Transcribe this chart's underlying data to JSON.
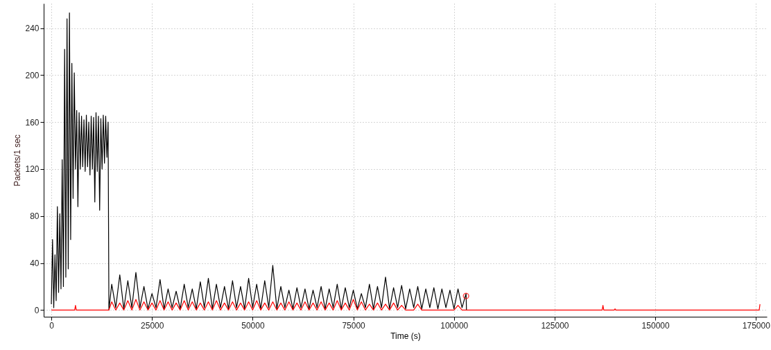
{
  "chart_data": {
    "type": "line",
    "xlabel": "Time (s)",
    "ylabel": "Packets/1 sec",
    "xlim": [
      -1900,
      177700
    ],
    "ylim": [
      -5.7,
      261
    ],
    "xticks": [
      0,
      25000,
      50000,
      75000,
      100000,
      125000,
      150000,
      175000
    ],
    "yticks": [
      0,
      40,
      80,
      120,
      160,
      200,
      240
    ],
    "grid": true,
    "series": [
      {
        "color": "#000000",
        "x": [
          0,
          300,
          600,
          900,
          1200,
          1500,
          1800,
          2100,
          2400,
          2700,
          3000,
          3300,
          3600,
          3900,
          4200,
          4500,
          4800,
          5100,
          5400,
          5700,
          6000,
          6300,
          6600,
          6900,
          7200,
          7500,
          7800,
          8100,
          8400,
          8700,
          9000,
          9300,
          9600,
          9900,
          10200,
          10500,
          10800,
          11100,
          11400,
          11700,
          12000,
          12300,
          12600,
          12900,
          13200,
          13500,
          13800,
          14100,
          14300,
          15000,
          16000,
          17000,
          18000,
          19000,
          20000,
          21000,
          22000,
          23000,
          24000,
          25000,
          26000,
          27000,
          28000,
          29000,
          30000,
          31000,
          32000,
          33000,
          34000,
          35000,
          36000,
          37000,
          38000,
          39000,
          40000,
          41000,
          42000,
          43000,
          44000,
          45000,
          46000,
          47000,
          48000,
          49000,
          50000,
          51000,
          52000,
          53000,
          54000,
          55000,
          56000,
          57000,
          58000,
          59000,
          60000,
          61000,
          62000,
          63000,
          64000,
          65000,
          66000,
          67000,
          68000,
          69000,
          70000,
          71000,
          72000,
          73000,
          74000,
          75000,
          76000,
          77000,
          78000,
          79000,
          80000,
          81000,
          82000,
          83000,
          84000,
          85000,
          86000,
          87000,
          88000,
          89000,
          90000,
          91000,
          92000,
          93000,
          94000,
          95000,
          96000,
          97000,
          98000,
          99000,
          100000,
          101000,
          102000,
          103000,
          103100
        ],
        "values": [
          5,
          60,
          2,
          47,
          8,
          88,
          15,
          82,
          18,
          128,
          20,
          222,
          28,
          248,
          35,
          253,
          60,
          210,
          95,
          202,
          120,
          170,
          88,
          168,
          120,
          165,
          122,
          162,
          118,
          166,
          122,
          160,
          115,
          165,
          120,
          164,
          92,
          168,
          118,
          165,
          85,
          163,
          120,
          166,
          125,
          165,
          130,
          160,
          0,
          22,
          2,
          30,
          1,
          25,
          2,
          32,
          2,
          20,
          1,
          14,
          2,
          26,
          1,
          18,
          2,
          16,
          1,
          22,
          2,
          18,
          1,
          24,
          2,
          27,
          1,
          22,
          2,
          20,
          1,
          25,
          2,
          20,
          1,
          27,
          2,
          22,
          1,
          25,
          2,
          38,
          1,
          20,
          2,
          17,
          1,
          19,
          2,
          18,
          1,
          17,
          2,
          20,
          1,
          18,
          2,
          22,
          1,
          19,
          2,
          17,
          1,
          14,
          2,
          22,
          1,
          20,
          2,
          28,
          1,
          19,
          2,
          21,
          1,
          18,
          2,
          20,
          1,
          18,
          2,
          19,
          1,
          18,
          2,
          17,
          1,
          18,
          2,
          14,
          0
        ]
      },
      {
        "color": "#ff0000",
        "x": [
          0,
          5800,
          6000,
          6200,
          14300,
          15000,
          16000,
          17000,
          18000,
          19000,
          20000,
          21000,
          22000,
          23000,
          24000,
          25000,
          26000,
          27000,
          28000,
          29000,
          30000,
          31000,
          32000,
          33000,
          34000,
          35000,
          36000,
          37000,
          38000,
          39000,
          40000,
          41000,
          42000,
          43000,
          44000,
          45000,
          46000,
          47000,
          48000,
          49000,
          50000,
          51000,
          52000,
          53000,
          54000,
          55000,
          56000,
          57000,
          58000,
          59000,
          60000,
          61000,
          62000,
          63000,
          64000,
          65000,
          66000,
          67000,
          68000,
          69000,
          70000,
          71000,
          72000,
          73000,
          74000,
          75000,
          76000,
          77000,
          78000,
          79000,
          80000,
          81000,
          82000,
          83000,
          84000,
          85000,
          86000,
          87000,
          88000,
          89000,
          90000,
          91000,
          92000,
          93000,
          94000,
          95000,
          96000,
          97000,
          98000,
          99000,
          100000,
          101000,
          102000,
          103000,
          136800,
          137000,
          137200,
          139800,
          140000,
          140200,
          175800,
          176000
        ],
        "values": [
          0,
          0,
          4,
          0,
          0,
          7,
          0,
          6,
          0,
          8,
          0,
          9,
          0,
          7,
          0,
          6,
          0,
          8,
          0,
          7,
          0,
          6,
          0,
          8,
          0,
          7,
          0,
          6,
          0,
          7,
          0,
          8,
          0,
          6,
          0,
          7,
          0,
          6,
          0,
          7,
          0,
          8,
          0,
          6,
          0,
          7,
          0,
          6,
          0,
          7,
          0,
          6,
          0,
          7,
          0,
          6,
          0,
          7,
          0,
          6,
          0,
          8,
          0,
          6,
          0,
          9,
          0,
          7,
          0,
          5,
          0,
          6,
          0,
          5,
          0,
          6,
          0,
          4,
          0,
          0,
          0,
          5,
          0,
          0,
          0,
          0,
          0,
          0,
          0,
          0,
          0,
          4,
          0,
          0,
          0,
          4,
          0,
          0,
          1,
          0,
          0,
          5
        ]
      },
      {
        "type": "scatter",
        "color": "#ff0000",
        "x": [
          103000
        ],
        "values": [
          12
        ]
      }
    ]
  }
}
